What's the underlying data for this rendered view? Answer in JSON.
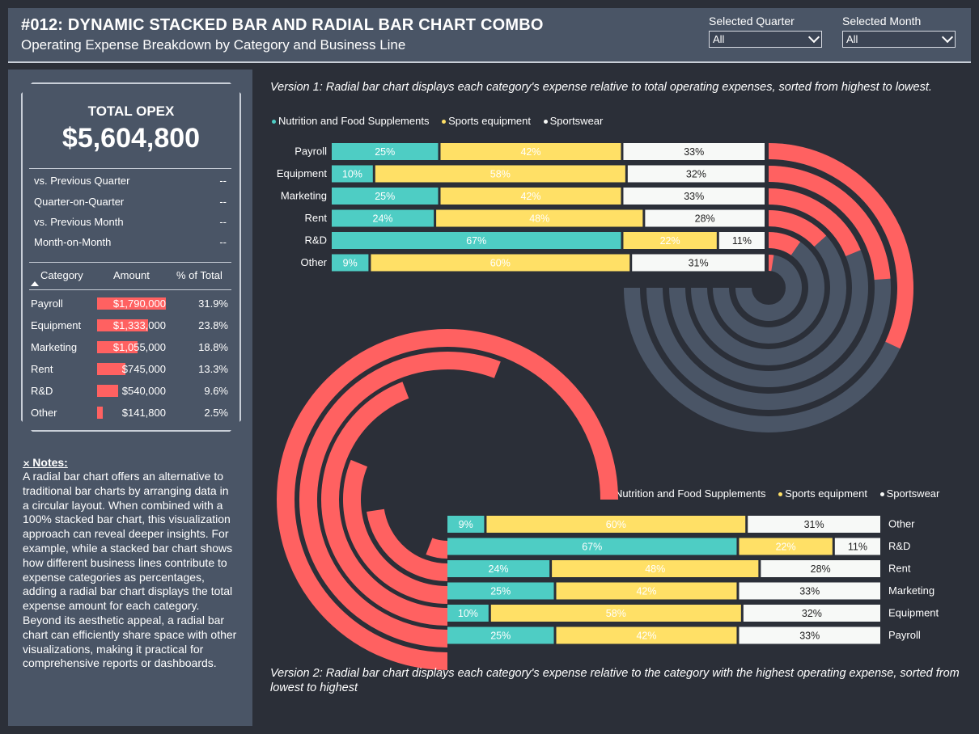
{
  "header": {
    "title": "#012: DYNAMIC STACKED BAR AND RADIAL BAR CHART COMBO",
    "subtitle": "Operating Expense Breakdown by Category and Business Line",
    "filters": [
      {
        "label": "Selected Quarter",
        "value": "All"
      },
      {
        "label": "Selected Month",
        "value": "All"
      }
    ]
  },
  "kpi": {
    "label": "TOTAL OPEX",
    "value": "$5,604,800",
    "comparisons": [
      {
        "label": "vs. Previous Quarter",
        "value": "--"
      },
      {
        "label": "Quarter-on-Quarter",
        "value": "--"
      },
      {
        "label": "vs. Previous Month",
        "value": "--"
      },
      {
        "label": "Month-on-Month",
        "value": "--"
      }
    ]
  },
  "table": {
    "headers": {
      "category": "Category",
      "amount": "Amount",
      "pct": "% of Total"
    },
    "rows": [
      {
        "category": "Payroll",
        "amount": "$1,790,000",
        "value": 1790000,
        "pct": "31.9%"
      },
      {
        "category": "Equipment",
        "amount": "$1,333,000",
        "value": 1333000,
        "pct": "23.8%"
      },
      {
        "category": "Marketing",
        "amount": "$1,055,000",
        "value": 1055000,
        "pct": "18.8%"
      },
      {
        "category": "Rent",
        "amount": "$745,000",
        "value": 745000,
        "pct": "13.3%"
      },
      {
        "category": "R&D",
        "amount": "$540,000",
        "value": 540000,
        "pct": "9.6%"
      },
      {
        "category": "Other",
        "amount": "$141,800",
        "value": 141800,
        "pct": "2.5%"
      }
    ]
  },
  "notes": {
    "title": "Notes:",
    "body": "A radial bar chart offers an alternative to traditional bar charts by arranging data in a circular layout. When combined with a 100% stacked bar chart, this visualization approach can reveal deeper insights. For example, while a stacked bar chart shows how different business lines contribute to expense categories as percentages, adding a radial bar chart displays the total expense amount for each category. Beyond its aesthetic appeal, a radial bar chart can efficiently share space with other visualizations, making it practical for comprehensive reports or dashboards."
  },
  "captions": {
    "v1": "Version 1: Radial bar chart displays each category's expense relative to total operating expenses, sorted from highest to lowest.",
    "v2": "Version 2: Radial bar chart displays each category's expense relative to the category with the highest operating expense, sorted from lowest to highest"
  },
  "colors": {
    "nutrition": "#4ecdc4",
    "sports_equipment": "#ffe066",
    "sportswear": "#f7f9f7",
    "radial": "#ff6161",
    "track": "#4a5566"
  },
  "chart_data": [
    {
      "type": "bar",
      "stacked": "100%",
      "orientation": "horizontal",
      "legend_position": "top",
      "categories": [
        "Payroll",
        "Equipment",
        "Marketing",
        "Rent",
        "R&D",
        "Other"
      ],
      "series": [
        {
          "name": "Nutrition and Food Supplements",
          "values": [
            25,
            10,
            25,
            24,
            67,
            9
          ]
        },
        {
          "name": "Sports equipment",
          "values": [
            42,
            58,
            42,
            48,
            22,
            60
          ]
        },
        {
          "name": "Sportswear",
          "values": [
            33,
            32,
            33,
            28,
            11,
            31
          ]
        }
      ]
    },
    {
      "type": "radial-bar",
      "categories": [
        "Payroll",
        "Equipment",
        "Marketing",
        "Rent",
        "R&D",
        "Other"
      ],
      "values": [
        31.9,
        23.8,
        18.8,
        13.3,
        9.6,
        2.5
      ],
      "max": 100
    },
    {
      "type": "radial-bar",
      "categories": [
        "Other",
        "R&D",
        "Rent",
        "Marketing",
        "Equipment",
        "Payroll"
      ],
      "values": [
        141800,
        540000,
        745000,
        1055000,
        1333000,
        1790000
      ],
      "max": 1790000
    },
    {
      "type": "bar",
      "stacked": "100%",
      "orientation": "horizontal",
      "legend_position": "top",
      "categories": [
        "Other",
        "R&D",
        "Rent",
        "Marketing",
        "Equipment",
        "Payroll"
      ],
      "series": [
        {
          "name": "Nutrition and Food Supplements",
          "values": [
            9,
            67,
            24,
            25,
            10,
            25
          ]
        },
        {
          "name": "Sports equipment",
          "values": [
            60,
            22,
            48,
            42,
            58,
            42
          ]
        },
        {
          "name": "Sportswear",
          "values": [
            31,
            11,
            28,
            33,
            32,
            33
          ]
        }
      ]
    }
  ]
}
